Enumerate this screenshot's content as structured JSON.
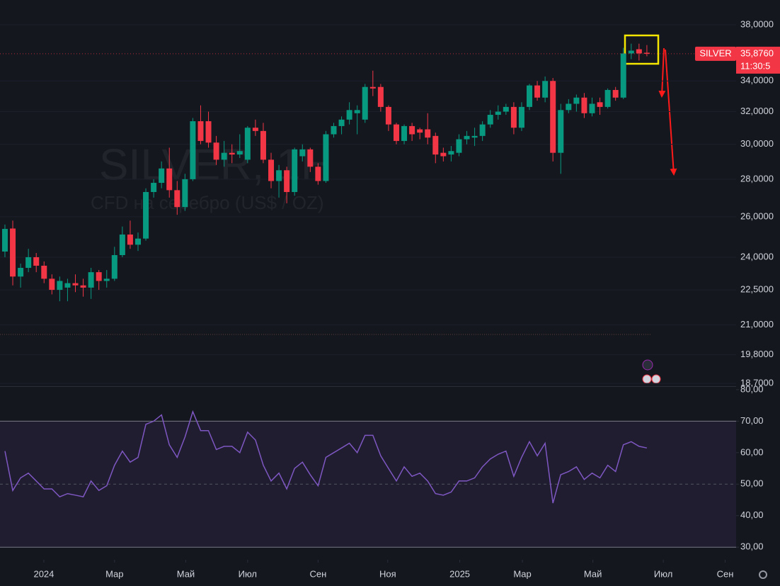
{
  "chart_data": [
    {
      "type": "candlestick",
      "title": "SILVER, 1Н",
      "subtitle": "CFD на серебро (US$ / OZ)",
      "open": [
        24.27,
        25.4,
        23.1,
        23.5,
        24.0,
        23.6,
        23.0,
        22.5,
        22.6,
        22.8,
        22.7,
        22.6,
        23.3,
        22.9,
        23.0,
        24.1,
        25.1,
        24.6,
        24.9,
        27.3,
        27.8,
        28.6,
        27.4,
        26.5,
        28.0,
        31.4,
        31.4,
        30.1,
        29.1,
        29.5,
        29.4,
        29.1,
        31.0,
        30.8,
        29.1,
        27.9,
        28.5,
        27.3,
        29.3,
        29.7,
        28.7,
        27.9,
        30.6,
        31.1,
        31.5,
        31.9,
        31.5,
        33.6,
        33.6,
        32.3,
        31.2,
        30.2,
        31.1,
        30.9,
        30.9,
        30.5,
        29.5,
        29.4,
        29.5,
        30.3,
        30.4,
        30.5,
        31.2,
        31.8,
        32.0,
        32.3,
        31.0,
        32.3,
        33.7,
        32.9,
        34.0,
        29.5,
        32.1,
        32.5,
        32.9,
        31.9,
        32.6,
        32.3,
        33.4,
        32.9,
        35.9,
        36.2,
        35.95
      ],
      "high": [
        25.6,
        25.8,
        23.7,
        24.4,
        24.2,
        23.8,
        23.2,
        23.1,
        23.0,
        23.2,
        23.0,
        23.5,
        23.4,
        23.4,
        24.5,
        25.5,
        25.8,
        25.2,
        27.5,
        28.0,
        29.0,
        29.8,
        27.9,
        28.3,
        31.6,
        32.4,
        32.0,
        30.5,
        30.2,
        30.0,
        30.6,
        31.1,
        31.5,
        31.3,
        29.5,
        28.8,
        28.7,
        29.8,
        30.0,
        29.8,
        28.9,
        30.8,
        31.3,
        31.7,
        32.6,
        32.4,
        33.8,
        34.7,
        33.8,
        32.4,
        31.3,
        31.2,
        31.3,
        31.0,
        31.9,
        30.7,
        29.8,
        29.9,
        30.6,
        30.8,
        31.0,
        31.4,
        32.1,
        32.4,
        32.5,
        32.6,
        32.6,
        33.8,
        34.0,
        34.3,
        34.2,
        32.5,
        32.8,
        33.1,
        33.2,
        32.9,
        32.9,
        33.5,
        33.6,
        36.3,
        36.6,
        36.6,
        36.5
      ],
      "low": [
        24.0,
        22.7,
        22.6,
        23.3,
        23.3,
        22.8,
        22.3,
        22.0,
        22.0,
        22.4,
        22.2,
        22.1,
        22.5,
        22.6,
        22.9,
        24.0,
        24.4,
        24.3,
        24.8,
        27.0,
        27.5,
        27.0,
        26.1,
        26.3,
        27.9,
        30.0,
        29.8,
        28.8,
        28.7,
        28.9,
        29.2,
        28.9,
        30.5,
        28.9,
        27.5,
        27.0,
        26.7,
        27.1,
        29.0,
        28.4,
        27.7,
        27.8,
        30.4,
        30.6,
        31.2,
        30.6,
        31.3,
        33.0,
        32.0,
        30.8,
        30.0,
        30.0,
        30.2,
        30.3,
        30.0,
        28.9,
        29.0,
        29.0,
        29.3,
        30.0,
        29.9,
        30.2,
        31.0,
        31.5,
        31.8,
        30.6,
        30.8,
        32.1,
        32.7,
        32.6,
        29.0,
        28.3,
        31.9,
        32.0,
        31.6,
        31.7,
        31.8,
        32.2,
        32.7,
        32.8,
        35.5,
        35.4,
        35.7
      ],
      "close": [
        25.38,
        23.1,
        23.5,
        24.0,
        23.6,
        23.0,
        22.5,
        22.9,
        22.8,
        22.7,
        22.6,
        23.3,
        22.9,
        23.0,
        24.1,
        25.1,
        24.6,
        24.9,
        27.3,
        27.8,
        28.6,
        27.4,
        26.5,
        28.0,
        31.4,
        30.2,
        30.1,
        29.1,
        29.5,
        29.4,
        29.6,
        31.0,
        30.8,
        29.1,
        27.9,
        28.5,
        27.3,
        29.7,
        29.7,
        28.7,
        27.9,
        30.6,
        31.1,
        31.5,
        32.1,
        32.1,
        33.6,
        33.5,
        32.3,
        31.2,
        30.2,
        31.1,
        30.6,
        30.7,
        30.4,
        29.4,
        29.3,
        29.6,
        30.3,
        30.5,
        30.5,
        31.2,
        31.8,
        32.0,
        32.3,
        31.0,
        32.3,
        33.7,
        32.9,
        34.0,
        29.5,
        32.1,
        32.5,
        32.9,
        31.9,
        32.5,
        32.3,
        33.4,
        32.9,
        35.9,
        36.1,
        35.9,
        35.876
      ],
      "up_color": "#089981",
      "down_color": "#f23645",
      "xlim": [
        -0.63,
        93.4
      ],
      "ylim": [
        18.6,
        39.9
      ],
      "log_scale": true,
      "yticks": [
        {
          "value": 38,
          "label": "38,0000"
        },
        {
          "value": 34,
          "label": "34,0000"
        },
        {
          "value": 32,
          "label": "32,0000"
        },
        {
          "value": 30,
          "label": "30,0000"
        },
        {
          "value": 28,
          "label": "28,0000"
        },
        {
          "value": 26,
          "label": "26,0000"
        },
        {
          "value": 24,
          "label": "24,0000"
        },
        {
          "value": 22.5,
          "label": "22,5000"
        },
        {
          "value": 21,
          "label": "21,0000"
        },
        {
          "value": 19.8,
          "label": "19,8000"
        },
        {
          "value": 18.7,
          "label": "18,7000"
        }
      ],
      "last_symbol": "SILVER",
      "last_label": "35,8760",
      "countdown": "11:30:5"
    },
    {
      "type": "line",
      "color": "#7e57c2",
      "values": [
        60.5,
        48,
        52,
        53.5,
        51,
        48.5,
        48.5,
        46,
        47,
        46.5,
        46,
        51,
        48,
        49.5,
        56,
        60.5,
        57,
        58.5,
        69,
        70,
        72,
        62.5,
        58.5,
        65,
        73,
        67,
        67,
        61,
        62,
        62,
        60,
        66.5,
        64,
        56,
        51,
        53.5,
        48.5,
        55,
        57,
        53,
        49.5,
        58.5,
        60,
        61.5,
        63,
        60,
        65.5,
        65.5,
        59,
        55,
        51,
        55.5,
        52.5,
        53.5,
        51,
        47,
        46.5,
        47.5,
        51,
        51,
        52,
        55.5,
        58,
        59.5,
        60.5,
        52.5,
        58.5,
        63.5,
        59,
        63,
        44,
        53,
        54,
        55.5,
        51.5,
        53.5,
        52,
        56,
        54,
        62.5,
        63.5,
        62,
        61.5
      ],
      "xlim": [
        -0.63,
        93.4
      ],
      "ylim": [
        26,
        81.1
      ],
      "yticks": [
        {
          "value": 80,
          "label": "80,00"
        },
        {
          "value": 70,
          "label": "70,00"
        },
        {
          "value": 60,
          "label": "60,00"
        },
        {
          "value": 50,
          "label": "50,00"
        },
        {
          "value": 40,
          "label": "40,00"
        },
        {
          "value": 30,
          "label": "30,00"
        }
      ],
      "bands": [
        70,
        30
      ],
      "midline": 50,
      "band_color": "#7e57c2",
      "xticks": [
        {
          "value": 4.97,
          "label": "2024"
        },
        {
          "value": 14.0,
          "label": "Мар"
        },
        {
          "value": 23.1,
          "label": "Май"
        },
        {
          "value": 31.0,
          "label": "Июл"
        },
        {
          "value": 40.0,
          "label": "Сен"
        },
        {
          "value": 48.9,
          "label": "Ноя"
        },
        {
          "value": 58.1,
          "label": "2025"
        },
        {
          "value": 66.1,
          "label": "Мар"
        },
        {
          "value": 75.1,
          "label": "Май"
        },
        {
          "value": 84.1,
          "label": "Июл"
        },
        {
          "value": 92.0,
          "label": "Сен"
        }
      ]
    }
  ]
}
